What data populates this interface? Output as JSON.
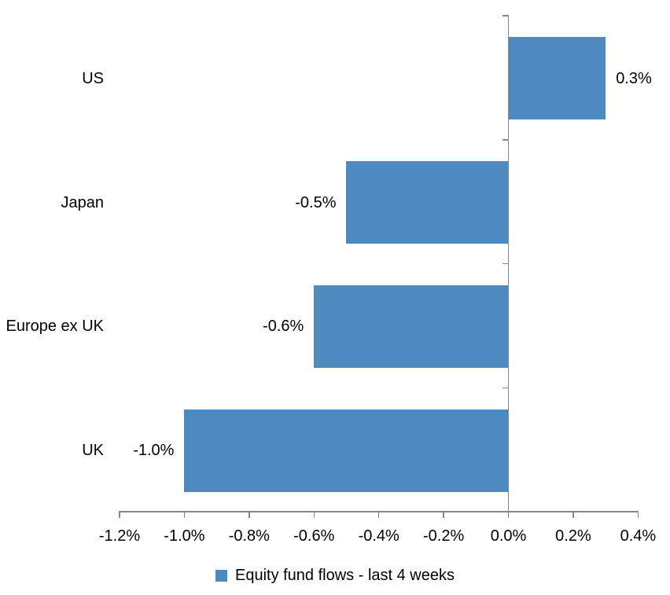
{
  "chart_data": {
    "type": "bar",
    "orientation": "horizontal",
    "title": "",
    "categories": [
      "US",
      "Japan",
      "Europe ex UK",
      "UK"
    ],
    "values": [
      0.3,
      -0.5,
      -0.6,
      -1.0
    ],
    "data_labels": [
      "0.3%",
      "-0.5%",
      "-0.6%",
      "-1.0%"
    ],
    "series": [
      {
        "name": "Equity fund flows - last 4 weeks",
        "values": [
          0.3,
          -0.5,
          -0.6,
          -1.0
        ]
      }
    ],
    "xlabel": "",
    "ylabel": "",
    "xlim": [
      -1.2,
      0.4
    ],
    "x_ticks": [
      -1.2,
      -1.0,
      -0.8,
      -0.6,
      -0.4,
      -0.2,
      0.0,
      0.2,
      0.4
    ],
    "x_tick_labels": [
      "-1.2%",
      "-1.0%",
      "-0.8%",
      "-0.6%",
      "-0.4%",
      "-0.2%",
      "0.0%",
      "0.2%",
      "0.4%"
    ],
    "grid": false,
    "legend_position": "bottom",
    "colors": {
      "bar": "#4e89c0",
      "axis": "#878787",
      "text": "#000000",
      "background": "#ffffff"
    }
  },
  "legend": {
    "label": "Equity fund flows - last 4 weeks"
  }
}
